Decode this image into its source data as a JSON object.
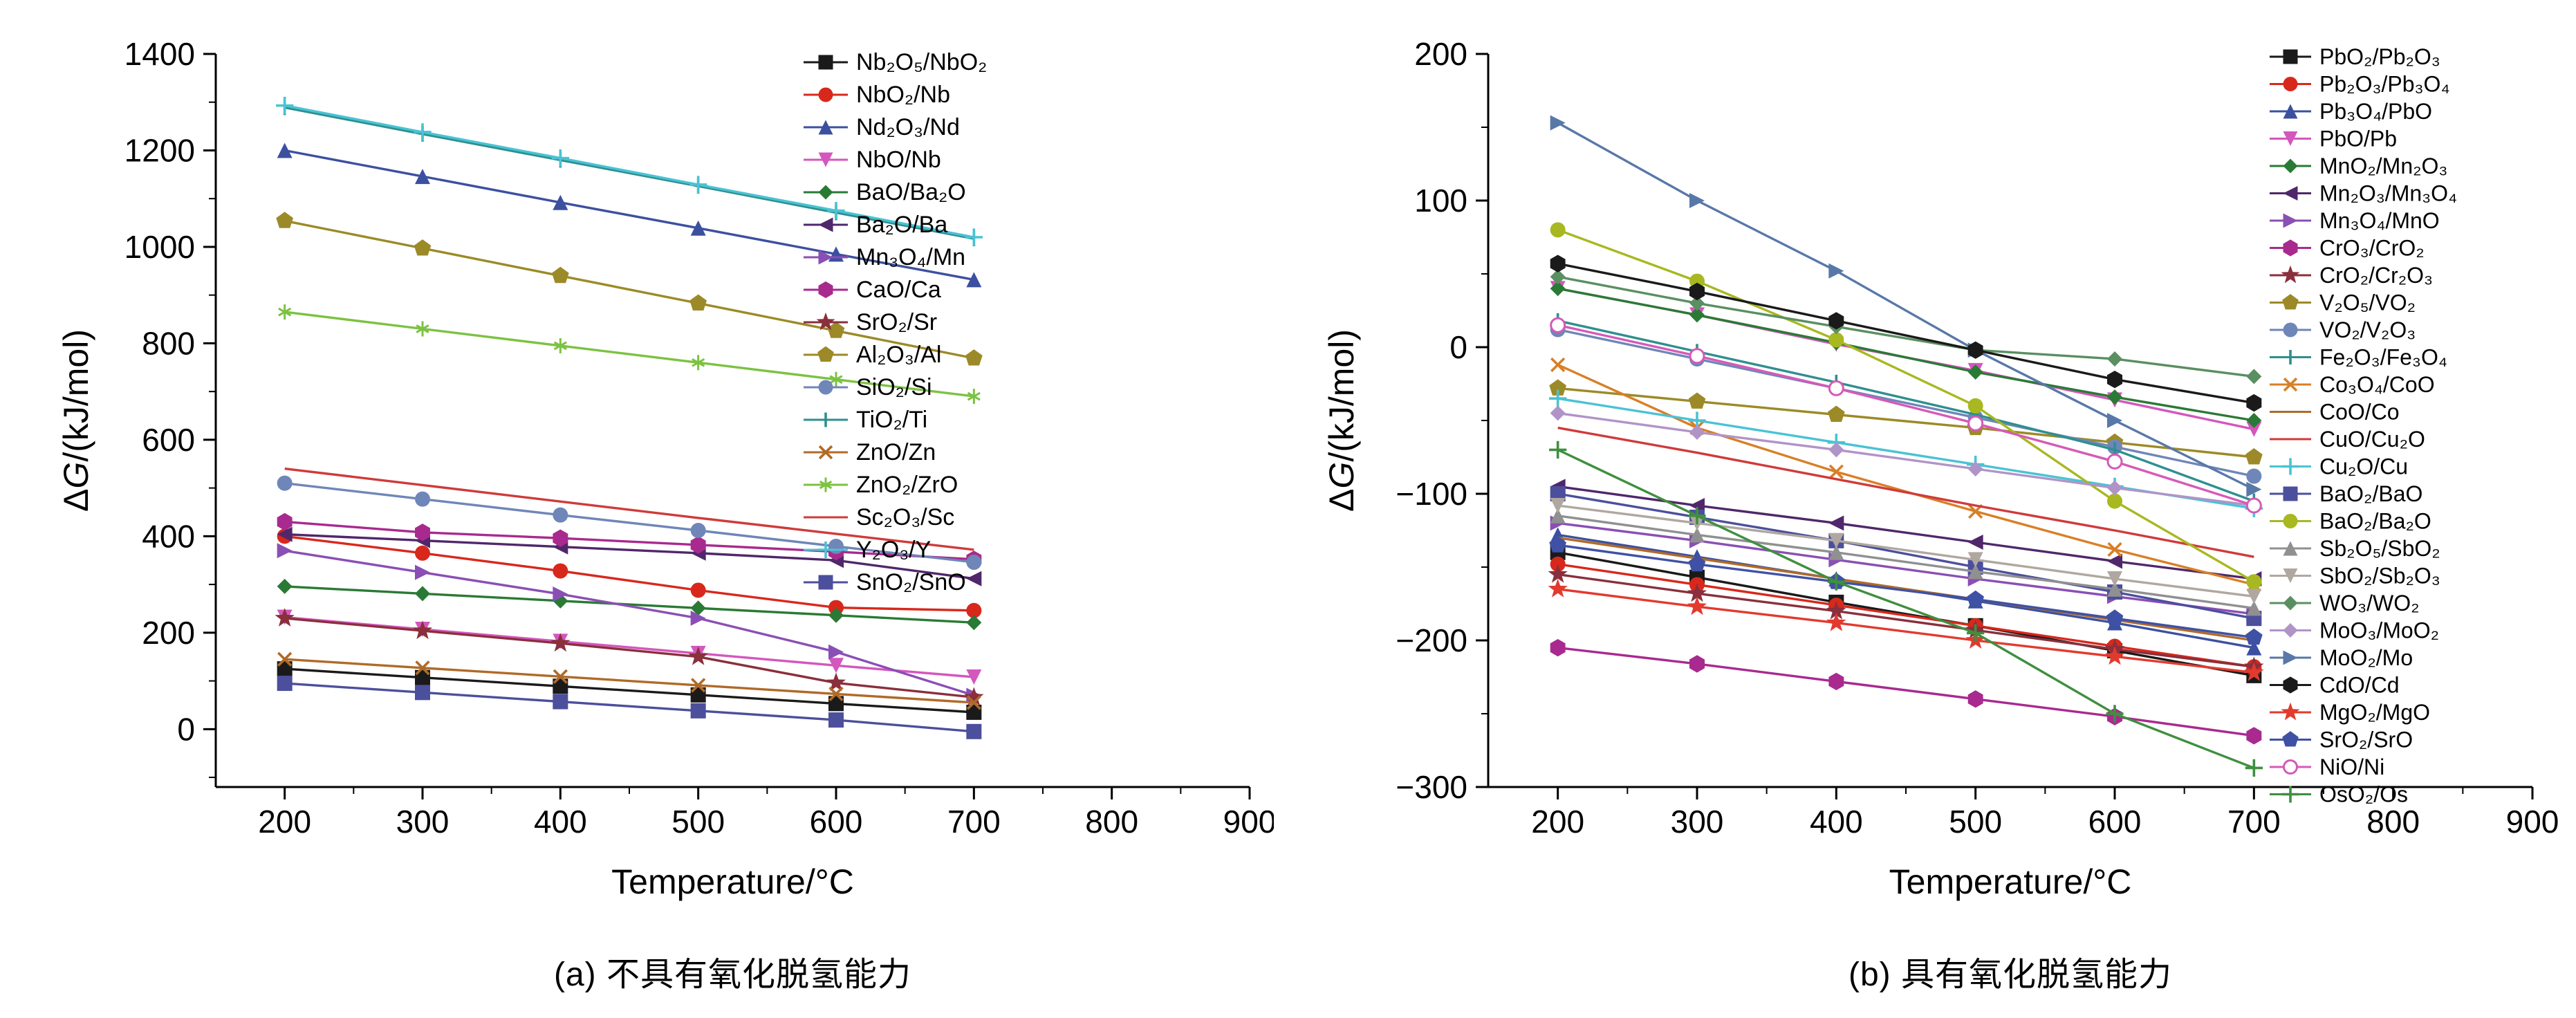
{
  "chart_data": [
    {
      "type": "line",
      "id": "a",
      "title": "(a) 不具有氧化脱氢能力",
      "xlabel": "Temperature/°C",
      "ylabel": "ΔG/(kJ/mol)",
      "x": [
        200,
        300,
        400,
        500,
        600,
        700
      ],
      "xlim": [
        150,
        900
      ],
      "xticks": [
        200,
        300,
        400,
        500,
        600,
        700,
        800,
        900
      ],
      "x_minor_step": 50,
      "ylim": [
        -120,
        1400
      ],
      "yticks": [
        0,
        200,
        400,
        600,
        800,
        1000,
        1200,
        1400
      ],
      "y_minor_step": 100,
      "grid": false,
      "legend_position": "inside-top-right",
      "series": [
        {
          "name": "Nb₂O₅/NbO₂",
          "color": "#1a1a1a",
          "marker": "square",
          "values": [
            125,
            107,
            89,
            71,
            53,
            35
          ]
        },
        {
          "name": "NbO₂/Nb",
          "color": "#d8281c",
          "marker": "circle",
          "values": [
            400,
            365,
            328,
            288,
            252,
            246
          ]
        },
        {
          "name": "Nd₂O₃/Nd",
          "color": "#3c50a0",
          "marker": "triangle-up",
          "values": [
            1200,
            1146,
            1092,
            1039,
            985,
            932
          ]
        },
        {
          "name": "NbO/Nb",
          "color": "#d357bd",
          "marker": "triangle-down",
          "values": [
            232,
            207,
            182,
            157,
            132,
            108
          ]
        },
        {
          "name": "BaO/Ba₂O",
          "color": "#2a7a35",
          "marker": "diamond",
          "values": [
            296,
            281,
            266,
            251,
            236,
            221
          ]
        },
        {
          "name": "Ba₂O/Ba",
          "color": "#50276b",
          "marker": "triangle-left",
          "values": [
            404,
            391,
            378,
            365,
            350,
            312
          ]
        },
        {
          "name": "Mn₃O₄/Mn",
          "color": "#8a4fb5",
          "marker": "triangle-right",
          "values": [
            370,
            325,
            280,
            230,
            160,
            70
          ]
        },
        {
          "name": "CaO/Ca",
          "color": "#a82a8f",
          "marker": "hexagon",
          "values": [
            430,
            408,
            396,
            382,
            368,
            352
          ]
        },
        {
          "name": "SrO₂/Sr",
          "color": "#8a2f3c",
          "marker": "star",
          "values": [
            230,
            204,
            178,
            150,
            96,
            66
          ]
        },
        {
          "name": "Al₂O₃/Al",
          "color": "#9c8a28",
          "marker": "pentagon",
          "values": [
            1054,
            997,
            940,
            883,
            826,
            769
          ]
        },
        {
          "name": "SiO₂/Si",
          "color": "#6f86b8",
          "marker": "circle",
          "values": [
            510,
            477,
            444,
            412,
            379,
            346
          ]
        },
        {
          "name": "TiO₂/Ti",
          "color": "#2f8f8f",
          "marker": "vline",
          "values": [
            1289,
            1234,
            1180,
            1126,
            1071,
            1017
          ]
        },
        {
          "name": "ZnO/Zn",
          "color": "#b06a28",
          "marker": "x",
          "values": [
            145,
            127,
            109,
            91,
            73,
            55
          ]
        },
        {
          "name": "ZnO₂/ZrO",
          "color": "#7cc242",
          "marker": "asterisk",
          "values": [
            865,
            830,
            795,
            760,
            725,
            690
          ]
        },
        {
          "name": "Sc₂O₃/Sc",
          "color": "#d03a3a",
          "marker": "none",
          "values": [
            540,
            506,
            472,
            438,
            405,
            372
          ]
        },
        {
          "name": "Y₂O₃/Y",
          "color": "#49c3d4",
          "marker": "plus",
          "values": [
            1293,
            1238,
            1184,
            1129,
            1075,
            1020
          ]
        },
        {
          "name": "SnO₂/SnO",
          "color": "#4c4f9c",
          "marker": "square",
          "values": [
            95,
            76,
            57,
            38,
            19,
            -5
          ]
        }
      ]
    },
    {
      "type": "line",
      "id": "b",
      "title": "(b) 具有氧化脱氢能力",
      "xlabel": "Temperature/°C",
      "ylabel": "ΔG/(kJ/mol)",
      "x": [
        200,
        300,
        400,
        500,
        600,
        700
      ],
      "xlim": [
        150,
        900
      ],
      "xticks": [
        200,
        300,
        400,
        500,
        600,
        700,
        800,
        900
      ],
      "x_minor_step": 50,
      "ylim": [
        -300,
        200
      ],
      "yticks": [
        -300,
        -200,
        -100,
        0,
        100,
        200
      ],
      "y_minor_step": 50,
      "grid": false,
      "legend_position": "inside-right",
      "series": [
        {
          "name": "PbO₂/Pb₂O₃",
          "color": "#1a1a1a",
          "marker": "square",
          "values": [
            -140,
            -157,
            -174,
            -190,
            -207,
            -224
          ]
        },
        {
          "name": "Pb₂O₃/Pb₃O₄",
          "color": "#d8281c",
          "marker": "circle",
          "values": [
            -148,
            -162,
            -176,
            -190,
            -204,
            -218
          ]
        },
        {
          "name": "Pb₃O₄/PbO",
          "color": "#3c50a0",
          "marker": "triangle-up",
          "values": [
            -128,
            -143,
            -158,
            -173,
            -188,
            -205
          ]
        },
        {
          "name": "PbO/Pb",
          "color": "#d357bd",
          "marker": "triangle-down",
          "values": [
            40,
            22,
            2,
            -16,
            -36,
            -56
          ]
        },
        {
          "name": "MnO₂/Mn₂O₃",
          "color": "#2a7a35",
          "marker": "diamond",
          "values": [
            40,
            22,
            3,
            -17,
            -34,
            -50
          ]
        },
        {
          "name": "Mn₂O₃/Mn₃O₄",
          "color": "#50276b",
          "marker": "triangle-left",
          "values": [
            -95,
            -108,
            -120,
            -133,
            -146,
            -158
          ]
        },
        {
          "name": "Mn₃O₄/MnO",
          "color": "#8a4fb5",
          "marker": "triangle-right",
          "values": [
            -120,
            -132,
            -145,
            -158,
            -170,
            -182
          ]
        },
        {
          "name": "CrO₃/CrO₂",
          "color": "#a82a8f",
          "marker": "hexagon",
          "values": [
            -205,
            -216,
            -228,
            -240,
            -252,
            -265
          ]
        },
        {
          "name": "CrO₂/Cr₂O₃",
          "color": "#8a2f3c",
          "marker": "star",
          "values": [
            -155,
            -168,
            -180,
            -193,
            -206,
            -218
          ]
        },
        {
          "name": "V₂O₅/VO₂",
          "color": "#9c8a28",
          "marker": "pentagon",
          "values": [
            -28,
            -37,
            -46,
            -55,
            -65,
            -75
          ]
        },
        {
          "name": "VO₂/V₂O₃",
          "color": "#6f86b8",
          "marker": "circle",
          "values": [
            12,
            -8,
            -28,
            -48,
            -68,
            -88
          ]
        },
        {
          "name": "Fe₂O₃/Fe₃O₄",
          "color": "#2f8f8f",
          "marker": "vline",
          "values": [
            18,
            -3,
            -24,
            -46,
            -70,
            -105
          ]
        },
        {
          "name": "Co₃O₄/CoO",
          "color": "#d97f26",
          "marker": "x",
          "values": [
            -12,
            -55,
            -85,
            -112,
            -138,
            -162
          ]
        },
        {
          "name": "CoO/Co",
          "color": "#b06a28",
          "marker": "none",
          "values": [
            -130,
            -144,
            -158,
            -172,
            -186,
            -200
          ]
        },
        {
          "name": "CuO/Cu₂O",
          "color": "#d03a3a",
          "marker": "none",
          "values": [
            -55,
            -72,
            -90,
            -108,
            -125,
            -143
          ]
        },
        {
          "name": "Cu₂O/Cu",
          "color": "#49c3d4",
          "marker": "plus",
          "values": [
            -35,
            -50,
            -65,
            -80,
            -95,
            -110
          ]
        },
        {
          "name": "BaO₂/BaO",
          "color": "#4c4f9c",
          "marker": "square",
          "values": [
            -100,
            -116,
            -132,
            -150,
            -167,
            -185
          ]
        },
        {
          "name": "BaO₂/Ba₂O",
          "color": "#a8b820",
          "marker": "circle",
          "values": [
            80,
            45,
            5,
            -40,
            -105,
            -160
          ]
        },
        {
          "name": "Sb₂O₅/SbO₂",
          "color": "#909090",
          "marker": "triangle-up",
          "values": [
            -115,
            -128,
            -140,
            -153,
            -165,
            -178
          ]
        },
        {
          "name": "SbO₂/Sb₂O₃",
          "color": "#b0a8a0",
          "marker": "triangle-down",
          "values": [
            -108,
            -120,
            -132,
            -145,
            -158,
            -170
          ]
        },
        {
          "name": "WO₃/WO₂",
          "color": "#5a8f62",
          "marker": "diamond",
          "values": [
            48,
            30,
            14,
            -2,
            -8,
            -20
          ]
        },
        {
          "name": "MoO₃/MoO₂",
          "color": "#b094c8",
          "marker": "diamond",
          "values": [
            -45,
            -58,
            -70,
            -83,
            -96,
            -108
          ]
        },
        {
          "name": "MoO₂/Mo",
          "color": "#5878a8",
          "marker": "triangle-right",
          "values": [
            153,
            100,
            52,
            -2,
            -50,
            -97
          ]
        },
        {
          "name": "CdO/Cd",
          "color": "#1a1a1a",
          "marker": "hexagon",
          "values": [
            57,
            38,
            18,
            -2,
            -22,
            -38
          ]
        },
        {
          "name": "MgO₂/MgO",
          "color": "#e23a2e",
          "marker": "star",
          "values": [
            -165,
            -177,
            -188,
            -200,
            -211,
            -222
          ]
        },
        {
          "name": "SrO₂/SrO",
          "color": "#3f51a5",
          "marker": "pentagon",
          "values": [
            -135,
            -148,
            -160,
            -172,
            -185,
            -198
          ]
        },
        {
          "name": "NiO/Ni",
          "color": "#d55ab8",
          "marker": "open-circle",
          "values": [
            15,
            -6,
            -28,
            -52,
            -78,
            -108
          ]
        },
        {
          "name": "OsO₂/Os",
          "color": "#3f8f3f",
          "marker": "plus",
          "values": [
            -70,
            -115,
            -160,
            -195,
            -250,
            -287
          ]
        }
      ]
    }
  ]
}
